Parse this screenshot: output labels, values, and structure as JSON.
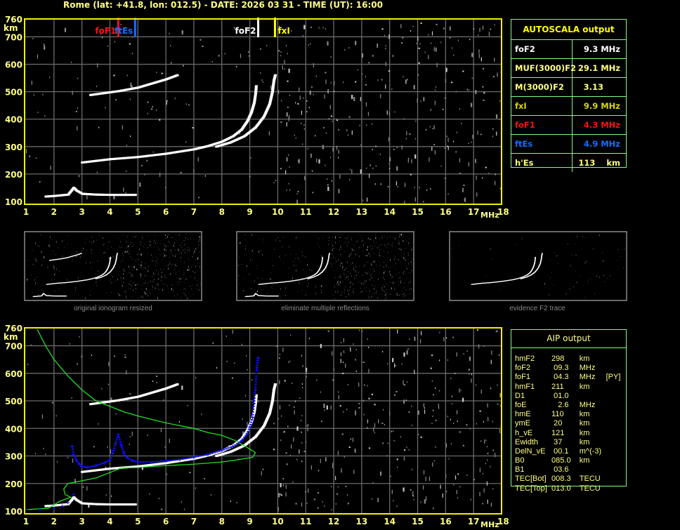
{
  "title": "Rome (lat: +41.8, lon: 012.5) - DATE: 2026 03 31 - TIME (UT): 16:00",
  "colors": {
    "frame": "#f0f000",
    "axis_text": "#ffff80",
    "grid": "#6a6a6a",
    "trace": "#ffffff",
    "noise": "#8a8a8a",
    "foF1": "#ff1010",
    "ftEs": "#1070ff",
    "foF2": "#ffffff",
    "fxI": "#ffff00",
    "profile": "#20e020",
    "fit": "#1010ff",
    "table_border": "#80ff80"
  },
  "chart_data": [
    {
      "type": "scatter",
      "name_hint": "ionogram-top",
      "xlabel": "MHz",
      "ylabel": "km",
      "xlim": [
        1,
        18
      ],
      "ylim": [
        100,
        760
      ],
      "x_ticks": [
        "1",
        "2",
        "3",
        "4",
        "5",
        "6",
        "7",
        "8",
        "9",
        "10",
        "11",
        "12",
        "13",
        "14",
        "15",
        "16",
        "17",
        "18"
      ],
      "y_ticks": [
        "100",
        "200",
        "300",
        "400",
        "500",
        "600",
        "700",
        "760"
      ],
      "grid": true,
      "markers": [
        {
          "label": "foF1",
          "freq": 4.3,
          "color": "#ff1010"
        },
        {
          "label": "ftEs",
          "freq": 4.9,
          "color": "#1070ff"
        },
        {
          "label": "foF2",
          "freq": 9.3,
          "color": "#ffffff"
        },
        {
          "label": "fxI",
          "freq": 9.9,
          "color": "#ffff00"
        }
      ],
      "traces": [
        {
          "kind": "E/Es",
          "points": [
            [
              1.7,
              118
            ],
            [
              2.0,
              120
            ],
            [
              2.5,
              125
            ],
            [
              2.7,
              150
            ],
            [
              2.8,
              140
            ],
            [
              3.0,
              128
            ],
            [
              3.5,
              125
            ],
            [
              4.0,
              124
            ],
            [
              4.5,
              124
            ],
            [
              4.9,
              124
            ]
          ]
        },
        {
          "kind": "F O-mode",
          "points": [
            [
              3.0,
              242
            ],
            [
              3.5,
              248
            ],
            [
              4.0,
              254
            ],
            [
              5.0,
              262
            ],
            [
              6.0,
              274
            ],
            [
              7.0,
              290
            ],
            [
              7.5,
              302
            ],
            [
              8.0,
              318
            ],
            [
              8.4,
              338
            ],
            [
              8.7,
              362
            ],
            [
              8.9,
              392
            ],
            [
              9.05,
              425
            ],
            [
              9.15,
              460
            ],
            [
              9.2,
              495
            ],
            [
              9.22,
              520
            ]
          ]
        },
        {
          "kind": "F X-mode",
          "points": [
            [
              7.8,
              300
            ],
            [
              8.3,
              315
            ],
            [
              8.8,
              338
            ],
            [
              9.2,
              370
            ],
            [
              9.5,
              410
            ],
            [
              9.7,
              455
            ],
            [
              9.8,
              500
            ],
            [
              9.85,
              540
            ],
            [
              9.9,
              560
            ]
          ]
        },
        {
          "kind": "multiple reflection",
          "points": [
            [
              3.3,
              488
            ],
            [
              3.8,
              495
            ],
            [
              4.3,
              502
            ],
            [
              5.0,
              515
            ],
            [
              5.5,
              530
            ],
            [
              6.0,
              545
            ],
            [
              6.4,
              560
            ]
          ]
        }
      ]
    },
    {
      "type": "scatter",
      "name_hint": "ionogram-bottom",
      "xlabel": "MHz",
      "ylabel": "km",
      "xlim": [
        1,
        18
      ],
      "ylim": [
        100,
        760
      ],
      "x_ticks": [
        "1",
        "2",
        "3",
        "4",
        "5",
        "6",
        "7",
        "8",
        "9",
        "10",
        "11",
        "12",
        "13",
        "14",
        "15",
        "16",
        "17",
        "18"
      ],
      "y_ticks": [
        "100",
        "200",
        "300",
        "400",
        "500",
        "600",
        "700",
        "760"
      ],
      "grid": true,
      "profile": [
        [
          1.4,
          760
        ],
        [
          1.7,
          700
        ],
        [
          2.0,
          650
        ],
        [
          2.5,
          590
        ],
        [
          3.0,
          540
        ],
        [
          3.5,
          500
        ],
        [
          4.0,
          480
        ],
        [
          4.5,
          460
        ],
        [
          5.0,
          445
        ],
        [
          6.0,
          420
        ],
        [
          7.0,
          400
        ],
        [
          7.5,
          385
        ],
        [
          8.0,
          375
        ],
        [
          8.5,
          355
        ],
        [
          9.0,
          325
        ],
        [
          9.2,
          312
        ],
        [
          9.1,
          295
        ],
        [
          8.5,
          285
        ],
        [
          8.0,
          278
        ],
        [
          7.0,
          270
        ],
        [
          6.0,
          265
        ],
        [
          5.0,
          258
        ],
        [
          4.4,
          256
        ],
        [
          4.0,
          240
        ],
        [
          3.5,
          220
        ],
        [
          3.0,
          210
        ],
        [
          2.5,
          200
        ],
        [
          2.35,
          180
        ],
        [
          2.4,
          160
        ],
        [
          2.6,
          150
        ],
        [
          2.2,
          135
        ],
        [
          1.8,
          110
        ],
        [
          1.0,
          105
        ]
      ],
      "fit": [
        [
          1.0,
          105
        ],
        [
          1.5,
          107
        ],
        [
          2.0,
          110
        ],
        [
          2.3,
          118
        ],
        [
          2.5,
          130
        ],
        [
          2.7,
          160
        ],
        [
          2.65,
          335
        ],
        [
          2.7,
          305
        ],
        [
          2.8,
          285
        ],
        [
          2.9,
          272
        ],
        [
          3.0,
          262
        ],
        [
          3.2,
          258
        ],
        [
          3.5,
          265
        ],
        [
          3.8,
          275
        ],
        [
          4.0,
          285
        ],
        [
          4.1,
          310
        ],
        [
          4.2,
          345
        ],
        [
          4.3,
          378
        ],
        [
          4.4,
          340
        ],
        [
          4.5,
          310
        ],
        [
          4.6,
          295
        ],
        [
          4.8,
          283
        ],
        [
          5.0,
          278
        ],
        [
          5.5,
          278
        ],
        [
          6.0,
          282
        ],
        [
          6.5,
          287
        ],
        [
          7.0,
          295
        ],
        [
          7.5,
          305
        ],
        [
          8.0,
          320
        ],
        [
          8.4,
          335
        ],
        [
          8.7,
          355
        ],
        [
          8.9,
          380
        ],
        [
          9.0,
          405
        ],
        [
          9.1,
          440
        ],
        [
          9.15,
          490
        ],
        [
          9.2,
          540
        ],
        [
          9.25,
          620
        ],
        [
          9.3,
          655
        ]
      ]
    }
  ],
  "thumbnails": [
    {
      "caption": "original ionogram resized"
    },
    {
      "caption": "eliminate multiple reflections"
    },
    {
      "caption": "evidence F2 trace"
    }
  ],
  "autoscala": {
    "header": "AUTOSCALA output",
    "rows": [
      {
        "label": "foF2",
        "value": "9.3 MHz",
        "color": "#ffffff"
      },
      {
        "label": "MUF(3000)F2",
        "value": "29.1 MHz",
        "color": "#ffff80"
      },
      {
        "label": "M(3000)F2",
        "value": "3.13      ",
        "color": "#ffff80"
      },
      {
        "label": "fxI",
        "value": "9.9 MHz",
        "color": "#d8d800"
      },
      {
        "label": "foF1",
        "value": "4.3 MHz",
        "color": "#ff1010"
      },
      {
        "label": "ftEs",
        "value": "4.9 MHz",
        "color": "#1070ff"
      },
      {
        "label": "h'Es",
        "value": "113    km",
        "color": "#ffff80"
      }
    ]
  },
  "aip": {
    "header": "AIP output",
    "rows": [
      [
        "hmF2",
        "298",
        "km",
        ""
      ],
      [
        "foF2",
        " 09.3",
        "MHz",
        ""
      ],
      [
        "foF1",
        " 04.3",
        "MHz",
        "[PY]"
      ],
      [
        "hmF1",
        "211",
        "km",
        ""
      ],
      [
        "D1",
        " 01.0",
        "",
        ""
      ],
      [
        "foE",
        "   2.6",
        "MHz",
        ""
      ],
      [
        "hmE",
        "110",
        "km",
        ""
      ],
      [
        "ymE",
        " 20",
        "km",
        ""
      ],
      [
        "h_vE",
        "121",
        "km",
        ""
      ],
      [
        "Ewidth",
        " 37",
        "km",
        ""
      ],
      [
        "DelN_vE",
        " 00.1",
        "m^(-3)",
        ""
      ],
      [
        "B0",
        "085.0",
        "km",
        ""
      ],
      [
        "B1",
        " 03.6",
        "",
        ""
      ],
      [
        "TEC[Bot]",
        "008.3",
        "TECU",
        ""
      ],
      [
        "TEC[Top]",
        "013.0",
        "TECU",
        ""
      ]
    ]
  }
}
